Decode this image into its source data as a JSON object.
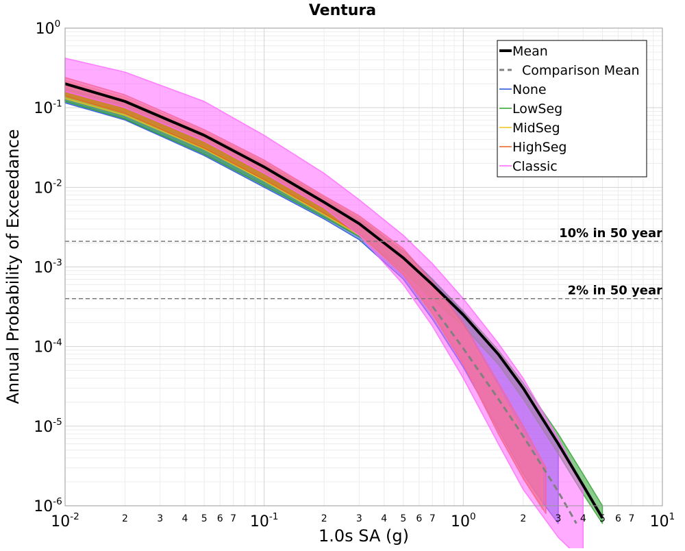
{
  "chart_data": {
    "type": "line",
    "title": "Ventura",
    "xlabel": "1.0s SA (g)",
    "ylabel": "Annual Probability of Exceedance",
    "xscale": "log",
    "yscale": "log",
    "xlim": [
      0.01,
      10
    ],
    "ylim": [
      1e-06,
      1
    ],
    "grid": true,
    "legend_position": "top-right",
    "x_major_ticks": [
      {
        "value": 0.01,
        "base": "10",
        "exp": "-2"
      },
      {
        "value": 0.1,
        "base": "10",
        "exp": "-1"
      },
      {
        "value": 1,
        "base": "10",
        "exp": "0"
      },
      {
        "value": 10,
        "base": "10",
        "exp": "1"
      }
    ],
    "x_minor_tick_labels": [
      "2",
      "3",
      "4",
      "5",
      "6",
      "7"
    ],
    "y_major_ticks": [
      {
        "value": 1e-06,
        "base": "10",
        "exp": "-6"
      },
      {
        "value": 1e-05,
        "base": "10",
        "exp": "-5"
      },
      {
        "value": 0.0001,
        "base": "10",
        "exp": "-4"
      },
      {
        "value": 0.001,
        "base": "10",
        "exp": "-3"
      },
      {
        "value": 0.01,
        "base": "10",
        "exp": "-2"
      },
      {
        "value": 0.1,
        "base": "10",
        "exp": "-1"
      },
      {
        "value": 1,
        "base": "10",
        "exp": "0"
      }
    ],
    "reference_lines": [
      {
        "label": "10% in 50 year",
        "y": 0.0021
      },
      {
        "label": "2% in 50 year",
        "y": 0.0004
      }
    ],
    "series": [
      {
        "name": "Mean",
        "color": "#000000",
        "style": "solid",
        "x": [
          0.01,
          0.02,
          0.05,
          0.1,
          0.2,
          0.3,
          0.5,
          0.7,
          1.0,
          1.5,
          2.0,
          3.0,
          4.0,
          5.0
        ],
        "y": [
          0.2,
          0.12,
          0.045,
          0.018,
          0.0065,
          0.0035,
          0.0013,
          0.0006,
          0.00025,
          8e-05,
          3e-05,
          6e-06,
          1.8e-06,
          7e-07
        ]
      },
      {
        "name": "Comparison Mean",
        "color": "#808080",
        "style": "dashed",
        "x": [
          0.7,
          1.0,
          1.5,
          2.0,
          3.0,
          3.7
        ],
        "y": [
          0.00032,
          9.5e-05,
          2.2e-05,
          7.5e-06,
          1.5e-06,
          6e-07
        ]
      },
      {
        "name": "None",
        "color": "#1f4fd6",
        "style": "band",
        "x": [
          0.01,
          0.02,
          0.05,
          0.1,
          0.2,
          0.3,
          0.5,
          0.7,
          1.0,
          1.5,
          2.0,
          2.5,
          3.0
        ],
        "y_low": [
          0.115,
          0.07,
          0.025,
          0.01,
          0.004,
          0.0022,
          0.0007,
          0.00022,
          5.5e-05,
          9e-06,
          2.5e-06,
          1.1e-06,
          6e-07
        ],
        "y_high": [
          0.175,
          0.11,
          0.042,
          0.018,
          0.0068,
          0.0038,
          0.0016,
          0.0007,
          0.00027,
          8e-05,
          3e-05,
          1.2e-05,
          6e-06
        ]
      },
      {
        "name": "LowSeg",
        "color": "#2ca02c",
        "style": "band",
        "x": [
          0.01,
          0.02,
          0.05,
          0.1,
          0.2,
          0.3,
          0.5,
          0.7,
          1.0,
          1.5,
          2.0,
          3.0,
          4.0,
          5.0
        ],
        "y_low": [
          0.12,
          0.072,
          0.026,
          0.0105,
          0.0042,
          0.0024,
          0.0009,
          0.0004,
          0.00018,
          6e-05,
          2.2e-05,
          4.5e-06,
          1.4e-06,
          6e-07
        ],
        "y_high": [
          0.2,
          0.125,
          0.047,
          0.02,
          0.0072,
          0.004,
          0.0016,
          0.0007,
          0.00028,
          9e-05,
          3.5e-05,
          8e-06,
          2.5e-06,
          1e-06
        ]
      },
      {
        "name": "MidSeg",
        "color": "#f0c419",
        "style": "band",
        "x": [
          0.01,
          0.02,
          0.05,
          0.1,
          0.2,
          0.3,
          0.5,
          0.7,
          1.0,
          1.5,
          2.0,
          2.5
        ],
        "y_low": [
          0.13,
          0.08,
          0.03,
          0.012,
          0.0045,
          0.0025,
          0.0008,
          0.00025,
          6e-05,
          8e-06,
          2.2e-06,
          9e-07
        ],
        "y_high": [
          0.22,
          0.135,
          0.05,
          0.021,
          0.0075,
          0.0042,
          0.0016,
          0.0006,
          0.00018,
          3e-05,
          8e-06,
          3e-06
        ]
      },
      {
        "name": "HighSeg",
        "color": "#e8601c",
        "style": "band",
        "x": [
          0.01,
          0.02,
          0.05,
          0.1,
          0.2,
          0.3,
          0.5,
          0.7,
          1.0,
          1.5,
          2.0,
          2.6
        ],
        "y_low": [
          0.14,
          0.085,
          0.031,
          0.0125,
          0.0047,
          0.0026,
          0.0008,
          0.00026,
          6e-05,
          8e-06,
          2.2e-06,
          8e-07
        ],
        "y_high": [
          0.24,
          0.145,
          0.053,
          0.022,
          0.0078,
          0.0044,
          0.0017,
          0.00065,
          0.0002,
          3.5e-05,
          1e-05,
          3e-06
        ]
      },
      {
        "name": "Classic",
        "color": "#ff66ff",
        "style": "band",
        "x": [
          0.01,
          0.02,
          0.05,
          0.1,
          0.2,
          0.3,
          0.5,
          0.7,
          1.0,
          1.5,
          2.0,
          3.0,
          4.0
        ],
        "y_low": [
          0.16,
          0.1,
          0.038,
          0.015,
          0.0055,
          0.0025,
          0.0006,
          0.00018,
          4e-05,
          6e-06,
          1.6e-06,
          4e-07,
          2e-07
        ],
        "y_high": [
          0.42,
          0.28,
          0.12,
          0.045,
          0.015,
          0.007,
          0.0025,
          0.0011,
          0.0004,
          0.00011,
          4e-05,
          7e-06,
          1.8e-06
        ]
      }
    ]
  }
}
